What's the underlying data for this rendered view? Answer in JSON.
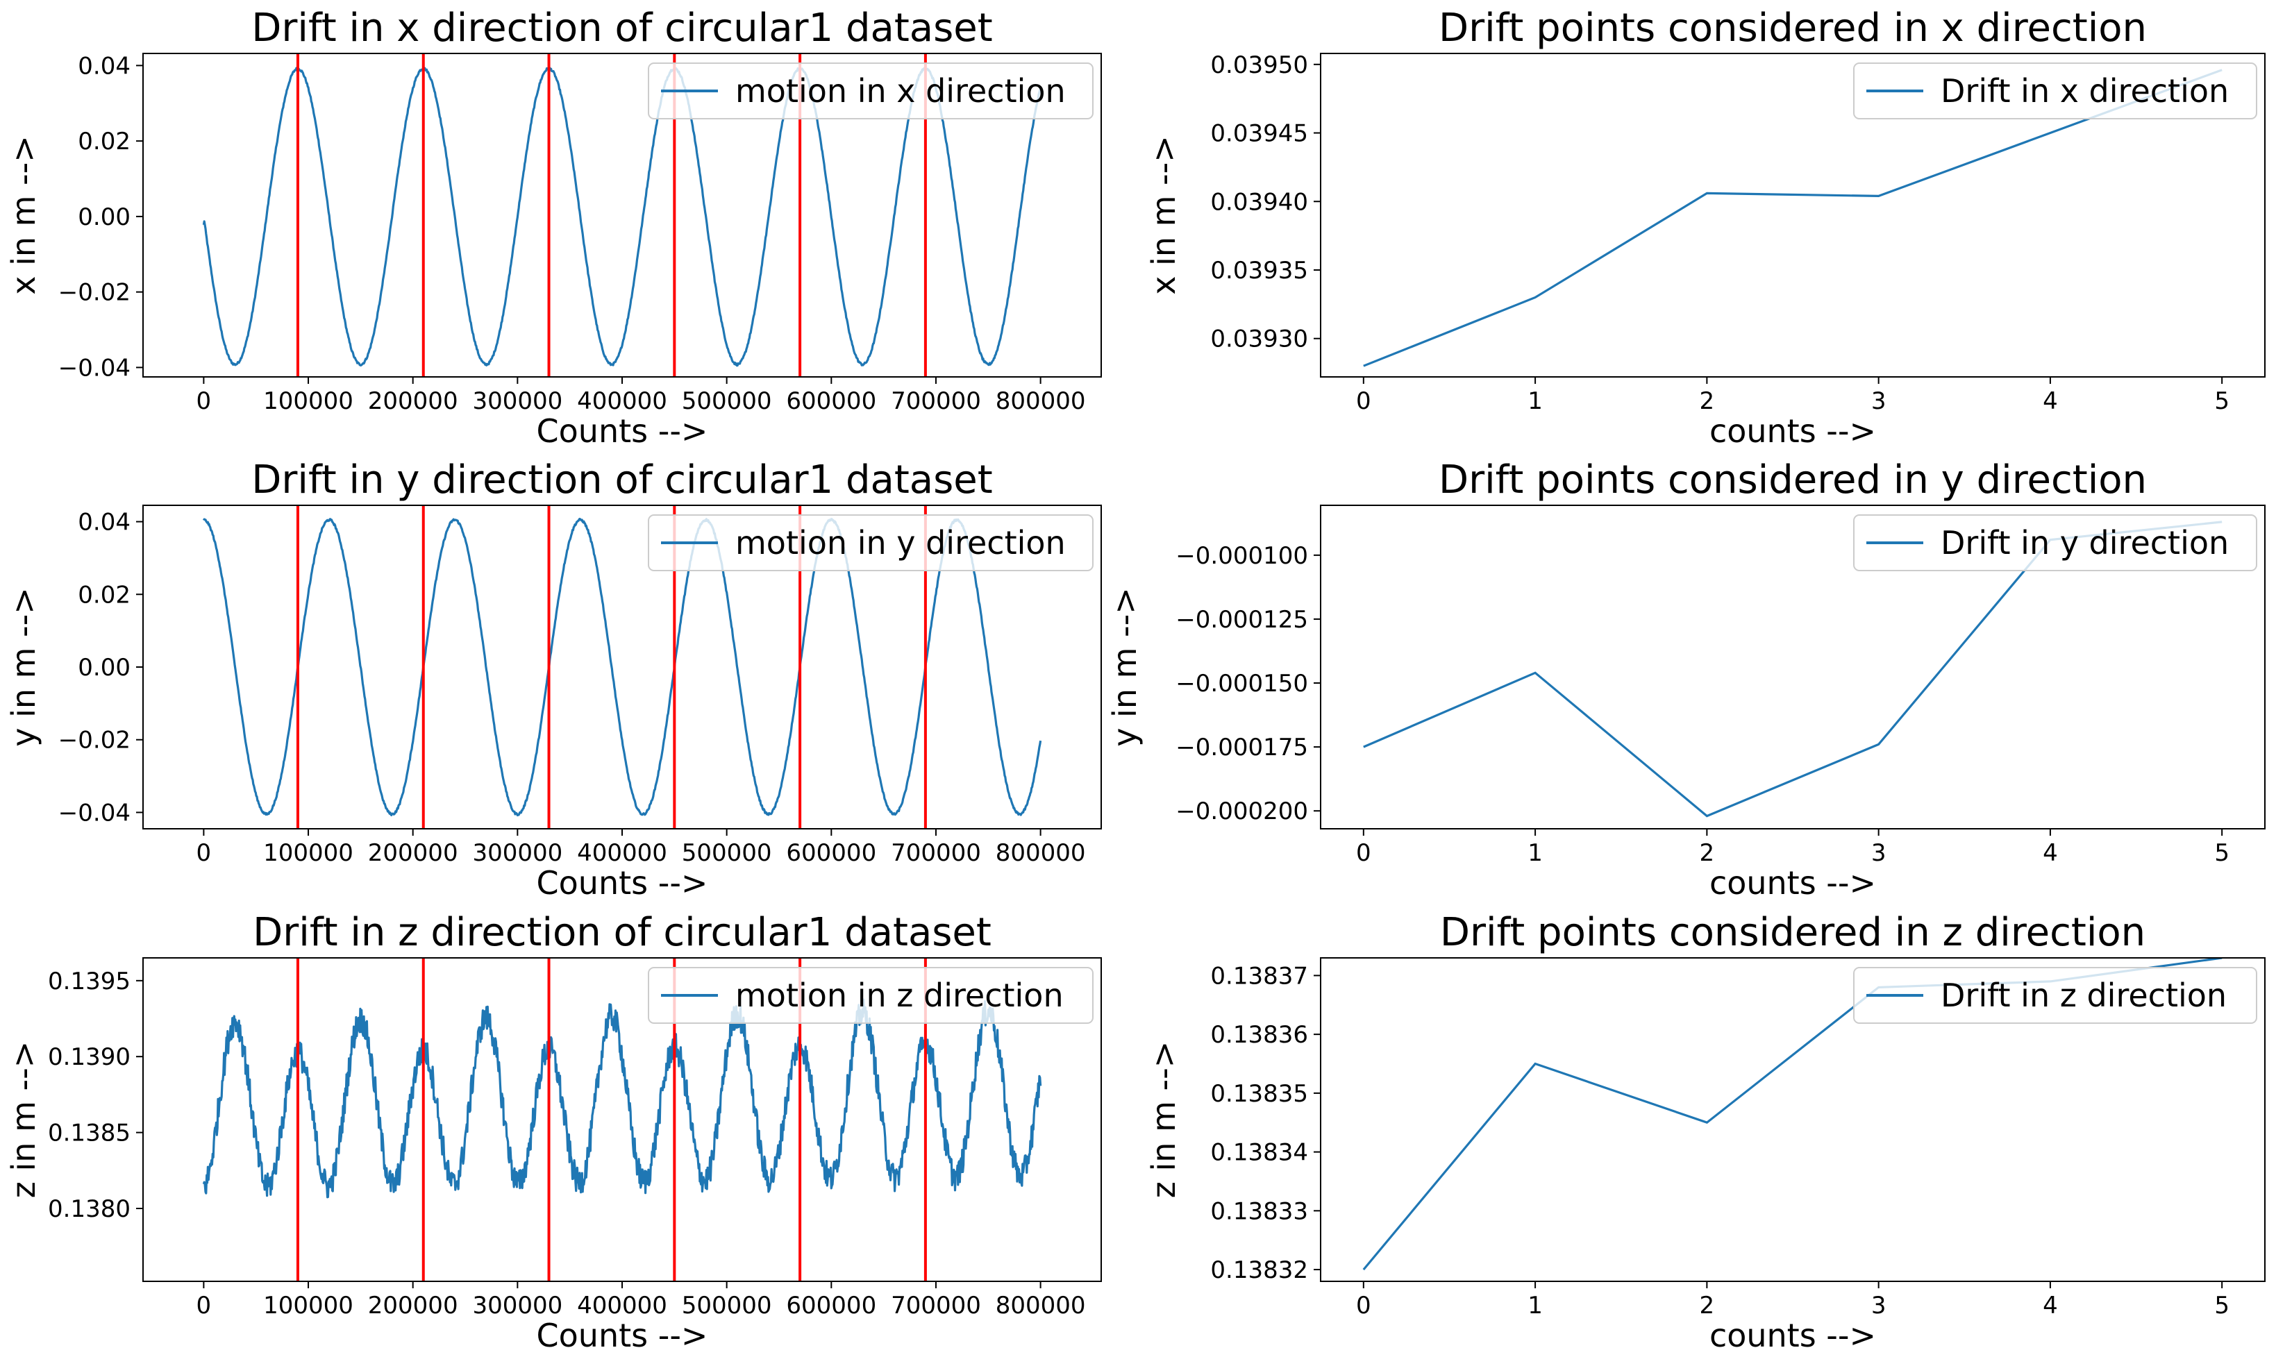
{
  "colors": {
    "series": "#1f77b4",
    "marker_lines": "#ff0000",
    "axes": "#000000",
    "background": "#ffffff"
  },
  "chart_data": [
    {
      "type": "line",
      "id": "x-motion",
      "title": "Drift in x direction of circular1 dataset",
      "xlabel": "Counts -->",
      "ylabel": "x in m  -->",
      "xlim": [
        -58000,
        858000
      ],
      "ylim": [
        -0.0425,
        0.0432
      ],
      "xticks": [
        0,
        100000,
        200000,
        300000,
        400000,
        500000,
        600000,
        700000,
        800000
      ],
      "xtick_labels": [
        "0",
        "100000",
        "200000",
        "300000",
        "400000",
        "500000",
        "600000",
        "700000",
        "800000"
      ],
      "yticks": [
        -0.04,
        -0.02,
        0.0,
        0.02,
        0.04
      ],
      "ytick_labels": [
        "−0.04",
        "−0.02",
        "0.00",
        "0.02",
        "0.04"
      ],
      "legend": "motion in x direction",
      "legend_loc": "upper right",
      "vlines": [
        90000,
        210000,
        330000,
        450000,
        570000,
        690000
      ],
      "signal": {
        "kind": "sine",
        "amplitude": 0.0392,
        "offset": 0.0,
        "period": 120000,
        "peak_at": 90000,
        "start": -0.0022,
        "x_start": 0,
        "x_end": 800000,
        "noise": 0.0003
      }
    },
    {
      "type": "line",
      "id": "x-drift",
      "title": "Drift points considered in x direction",
      "xlabel": "counts -->",
      "ylabel": "x in m  -->",
      "xlim": [
        -0.25,
        5.25
      ],
      "ylim": [
        0.039272,
        0.039508
      ],
      "xticks": [
        0,
        1,
        2,
        3,
        4,
        5
      ],
      "xtick_labels": [
        "0",
        "1",
        "2",
        "3",
        "4",
        "5"
      ],
      "yticks": [
        0.0393,
        0.03935,
        0.0394,
        0.03945,
        0.0395
      ],
      "ytick_labels": [
        "0.03930",
        "0.03935",
        "0.03940",
        "0.03945",
        "0.03950"
      ],
      "legend": "Drift in x direction",
      "legend_loc": "upper right",
      "x": [
        0,
        1,
        2,
        3,
        4,
        5
      ],
      "y": [
        0.03928,
        0.03933,
        0.039406,
        0.039404,
        0.03945,
        0.039496
      ]
    },
    {
      "type": "line",
      "id": "y-motion",
      "title": "Drift in y direction of circular1 dataset",
      "xlabel": "Counts -->",
      "ylabel": "y in m  -->",
      "xlim": [
        -58000,
        858000
      ],
      "ylim": [
        -0.0445,
        0.0445
      ],
      "xticks": [
        0,
        100000,
        200000,
        300000,
        400000,
        500000,
        600000,
        700000,
        800000
      ],
      "xtick_labels": [
        "0",
        "100000",
        "200000",
        "300000",
        "400000",
        "500000",
        "600000",
        "700000",
        "800000"
      ],
      "yticks": [
        -0.04,
        -0.02,
        0.0,
        0.02,
        0.04
      ],
      "ytick_labels": [
        "−0.04",
        "−0.02",
        "0.00",
        "0.02",
        "0.04"
      ],
      "legend": "motion in y direction",
      "legend_loc": "upper right",
      "vlines": [
        90000,
        210000,
        330000,
        450000,
        570000,
        690000
      ],
      "signal": {
        "kind": "sine",
        "amplitude": 0.0405,
        "offset": 0.0,
        "period": 120000,
        "peak_at": 120000,
        "x_start": 0,
        "x_end": 800000,
        "noise": 0.0003
      }
    },
    {
      "type": "line",
      "id": "y-drift",
      "title": "Drift points considered in y direction",
      "xlabel": "counts -->",
      "ylabel": "y in m  -->",
      "xlim": [
        -0.25,
        5.25
      ],
      "ylim": [
        -0.000207,
        -8.05e-05
      ],
      "xticks": [
        0,
        1,
        2,
        3,
        4,
        5
      ],
      "xtick_labels": [
        "0",
        "1",
        "2",
        "3",
        "4",
        "5"
      ],
      "yticks": [
        -0.0002,
        -0.000175,
        -0.00015,
        -0.000125,
        -0.0001
      ],
      "ytick_labels": [
        "−0.000200",
        "−0.000175",
        "−0.000150",
        "−0.000125",
        "−0.000100"
      ],
      "legend": "Drift in y direction",
      "legend_loc": "upper right",
      "x": [
        0,
        1,
        2,
        3,
        4,
        5
      ],
      "y": [
        -0.000175,
        -0.000146,
        -0.000202,
        -0.000174,
        -9.4e-05,
        -8.7e-05
      ]
    },
    {
      "type": "line",
      "id": "z-motion",
      "title": "Drift in z direction of circular1 dataset",
      "xlabel": "Counts -->",
      "ylabel": "z in m  -->",
      "xlim": [
        -58000,
        858000
      ],
      "ylim": [
        0.13752,
        0.13965
      ],
      "xticks": [
        0,
        100000,
        200000,
        300000,
        400000,
        500000,
        600000,
        700000,
        800000
      ],
      "xtick_labels": [
        "0",
        "100000",
        "200000",
        "300000",
        "400000",
        "500000",
        "600000",
        "700000",
        "800000"
      ],
      "yticks": [
        0.138,
        0.1385,
        0.139,
        0.1395
      ],
      "ytick_labels": [
        "0.1380",
        "0.1385",
        "0.1390",
        "0.1395"
      ],
      "legend": "motion in z direction",
      "legend_loc": "upper right",
      "vlines": [
        90000,
        210000,
        330000,
        450000,
        570000,
        690000
      ],
      "signal": {
        "kind": "sine2",
        "amplitude": 0.00058,
        "offset": 0.13863,
        "period": 60000,
        "peak_at": 30000,
        "drift": 8e-05,
        "x_start": 0,
        "x_end": 800000,
        "noise": 9e-05
      }
    },
    {
      "type": "line",
      "id": "z-drift",
      "title": "Drift points considered in z direction",
      "xlabel": "counts -->",
      "ylabel": "z in m  -->",
      "xlim": [
        -0.25,
        5.25
      ],
      "ylim": [
        0.138318,
        0.138373
      ],
      "xticks": [
        0,
        1,
        2,
        3,
        4,
        5
      ],
      "xtick_labels": [
        "0",
        "1",
        "2",
        "3",
        "4",
        "5"
      ],
      "yticks": [
        0.13832,
        0.13833,
        0.13834,
        0.13835,
        0.13836,
        0.13837
      ],
      "ytick_labels": [
        "0.13832",
        "0.13833",
        "0.13834",
        "0.13835",
        "0.13836",
        "0.13837"
      ],
      "legend": "Drift in z direction",
      "legend_loc": "upper right",
      "x": [
        0,
        1,
        2,
        3,
        4,
        5
      ],
      "y": [
        0.13832,
        0.138355,
        0.138345,
        0.138368,
        0.138369,
        0.138373
      ]
    }
  ]
}
